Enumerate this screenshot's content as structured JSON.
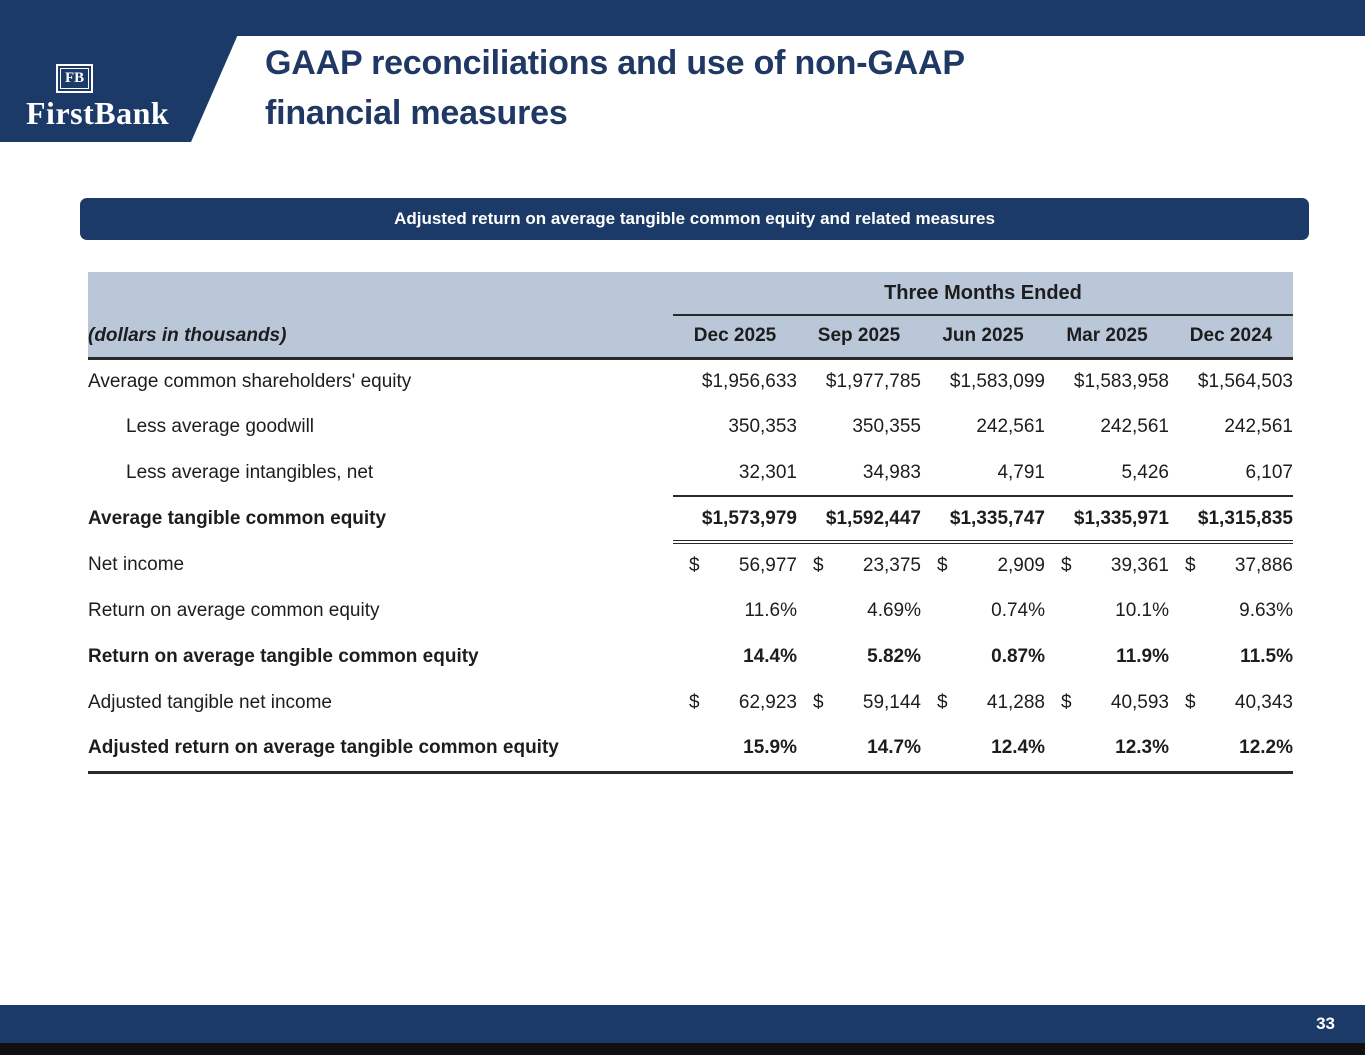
{
  "header": {
    "logo": {
      "emblem": "FB",
      "wordmark": "FirstBank"
    },
    "title_line1": "GAAP reconciliations and use of non-GAAP",
    "title_line2": "financial measures"
  },
  "banner": {
    "label": "Adjusted return on average tangible common equity and related measures"
  },
  "footer": {
    "page_number": "33"
  },
  "colors": {
    "navy": "#1b3a68",
    "header_bg": "#bac7d9",
    "title_text": "#1f3864"
  },
  "chart_data": {
    "type": "table",
    "group_header": "Three Months Ended",
    "corner_label": "(dollars in thousands)",
    "dollar_sign": "$",
    "columns": [
      "Dec 2025",
      "Sep 2025",
      "Jun 2025",
      "Mar 2025",
      "Dec 2024"
    ],
    "rows": [
      {
        "label": "Average common shareholders' equity",
        "values": [
          "$1,956,633",
          "$1,977,785",
          "$1,583,099",
          "$1,583,958",
          "$1,564,503"
        ],
        "indent": false,
        "bold": false,
        "dollar_split": false,
        "underline": "none"
      },
      {
        "label": "Less average goodwill",
        "values": [
          "350,353",
          "350,355",
          "242,561",
          "242,561",
          "242,561"
        ],
        "indent": true,
        "bold": false,
        "dollar_split": false,
        "underline": "none"
      },
      {
        "label": "Less average intangibles, net",
        "values": [
          "32,301",
          "34,983",
          "4,791",
          "5,426",
          "6,107"
        ],
        "indent": true,
        "bold": false,
        "dollar_split": false,
        "underline": "single"
      },
      {
        "label": "Average tangible common equity",
        "values": [
          "$1,573,979",
          "$1,592,447",
          "$1,335,747",
          "$1,335,971",
          "$1,315,835"
        ],
        "indent": false,
        "bold": true,
        "dollar_split": false,
        "underline": "double"
      },
      {
        "label": "Net income",
        "values": [
          "56,977",
          "23,375",
          "2,909",
          "39,361",
          "37,886"
        ],
        "indent": false,
        "bold": false,
        "dollar_split": true,
        "underline": "none"
      },
      {
        "label": "Return on average common equity",
        "values": [
          "11.6%",
          "4.69%",
          "0.74%",
          "10.1%",
          "9.63%"
        ],
        "indent": false,
        "bold": false,
        "dollar_split": false,
        "underline": "none"
      },
      {
        "label": "Return on average tangible common equity",
        "values": [
          "14.4%",
          "5.82%",
          "0.87%",
          "11.9%",
          "11.5%"
        ],
        "indent": false,
        "bold": true,
        "dollar_split": false,
        "underline": "none"
      },
      {
        "label": "Adjusted tangible net income",
        "values": [
          "62,923",
          "59,144",
          "41,288",
          "40,593",
          "40,343"
        ],
        "indent": false,
        "bold": false,
        "dollar_split": true,
        "underline": "none"
      },
      {
        "label": "Adjusted return on average tangible common equity",
        "values": [
          "15.9%",
          "14.7%",
          "12.4%",
          "12.3%",
          "12.2%"
        ],
        "indent": false,
        "bold": true,
        "dollar_split": false,
        "underline": "thick"
      }
    ]
  }
}
